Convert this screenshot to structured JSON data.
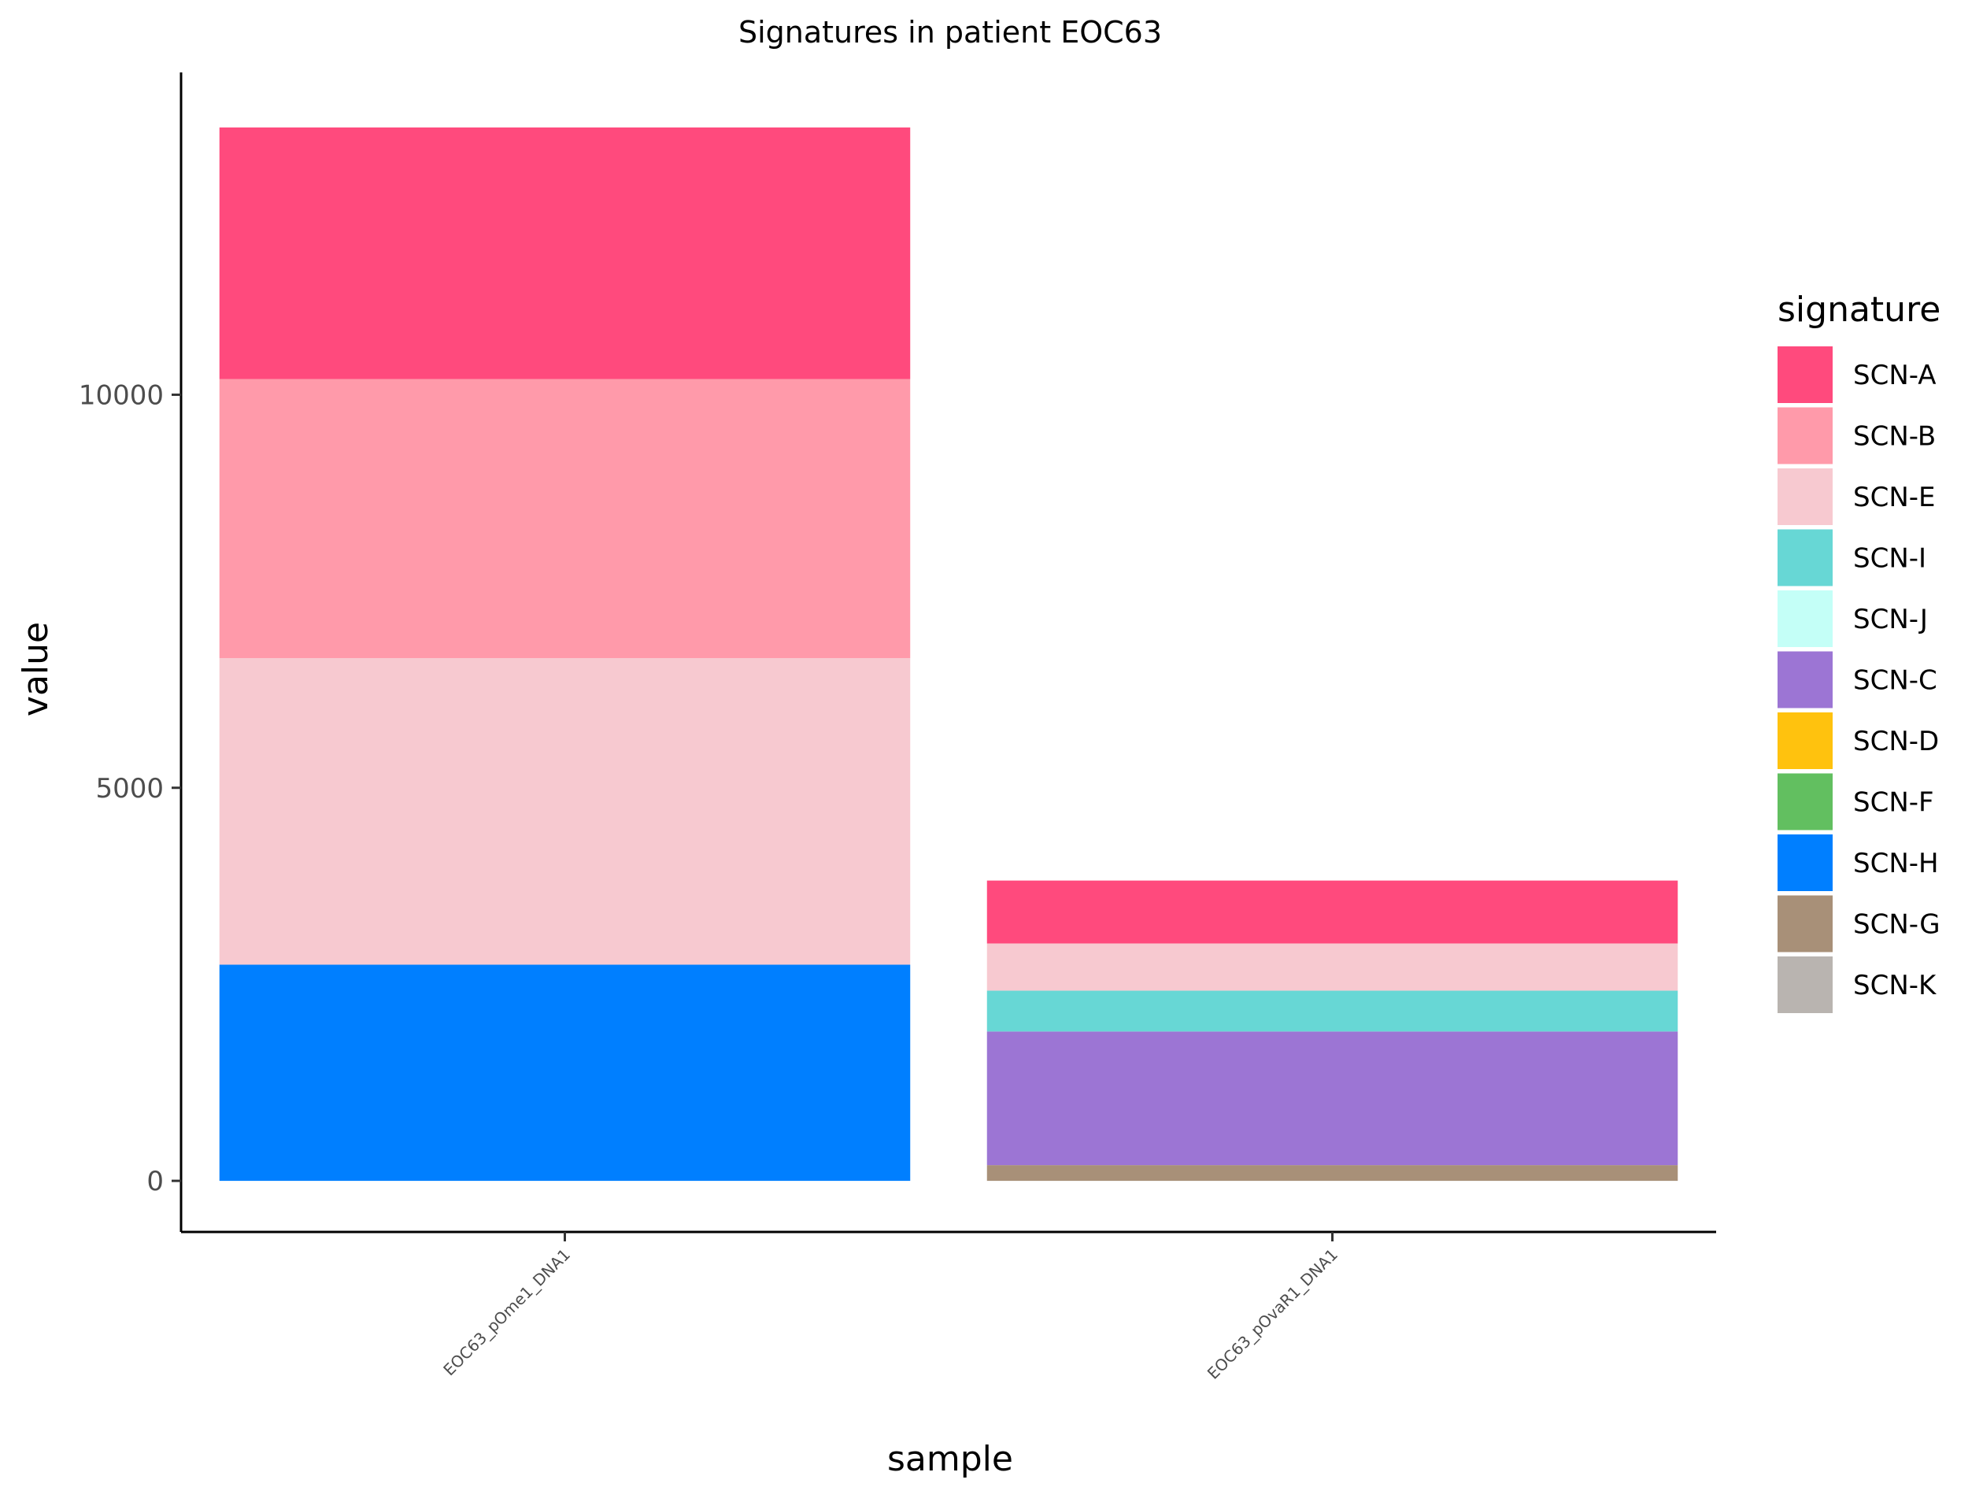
{
  "chart_data": {
    "type": "bar",
    "stacked": true,
    "title": "Signatures in patient EOC63",
    "xlabel": "sample",
    "ylabel": "value",
    "categories": [
      "EOC63_pOme1_DNA1",
      "EOC63_pOvaR1_DNA1"
    ],
    "ylim": [
      -650,
      14100
    ],
    "yticks": [
      0,
      5000,
      10000
    ],
    "grid": false,
    "legend": {
      "title": "signature",
      "placement": "right",
      "entries": [
        "SCN-A",
        "SCN-B",
        "SCN-E",
        "SCN-I",
        "SCN-J",
        "SCN-C",
        "SCN-D",
        "SCN-F",
        "SCN-H",
        "SCN-G",
        "SCN-K"
      ]
    },
    "series": [
      {
        "name": "SCN-A",
        "color": "#FF4A7D",
        "values": [
          3200,
          800
        ]
      },
      {
        "name": "SCN-B",
        "color": "#FF9AAA",
        "values": [
          3550,
          0
        ]
      },
      {
        "name": "SCN-E",
        "color": "#F7C9D0",
        "values": [
          3900,
          600
        ]
      },
      {
        "name": "SCN-I",
        "color": "#67D7D5",
        "values": [
          0,
          520
        ]
      },
      {
        "name": "SCN-J",
        "color": "#C4FFF7",
        "values": [
          0,
          0
        ]
      },
      {
        "name": "SCN-C",
        "color": "#9C75D4",
        "values": [
          0,
          1700
        ]
      },
      {
        "name": "SCN-D",
        "color": "#FFC20E",
        "values": [
          0,
          0
        ]
      },
      {
        "name": "SCN-F",
        "color": "#62BF60",
        "values": [
          0,
          0
        ]
      },
      {
        "name": "SCN-H",
        "color": "#007FFF",
        "values": [
          2750,
          0
        ]
      },
      {
        "name": "SCN-G",
        "color": "#A89078",
        "values": [
          0,
          200
        ]
      },
      {
        "name": "SCN-K",
        "color": "#B9B4B0",
        "values": [
          0,
          0
        ]
      }
    ]
  }
}
